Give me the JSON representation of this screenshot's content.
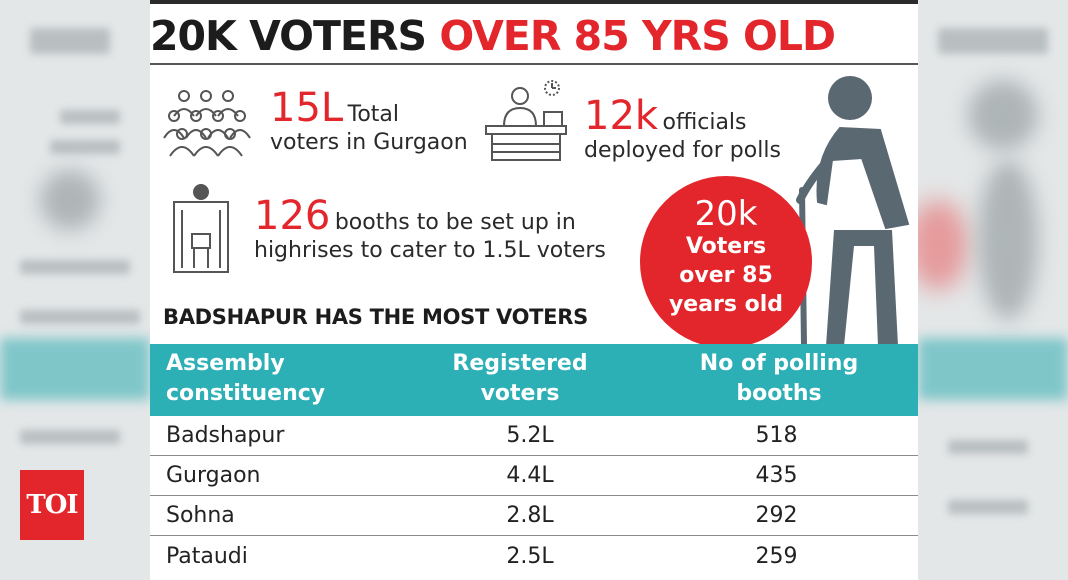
{
  "headline": {
    "part1": "20K VOTERS",
    "part2": "OVER 85 YRS OLD"
  },
  "stats": [
    {
      "big": "15L",
      "line1": "Total",
      "line2": "voters in Gurgaon",
      "icon": "crowd-icon"
    },
    {
      "big": "12k",
      "line1": "officials",
      "line2": "deployed for polls",
      "icon": "official-desk-icon"
    },
    {
      "big": "126",
      "line1": "booths to be set up in",
      "line2": "highrises to cater to 1.5L voters",
      "icon": "voting-booth-icon"
    }
  ],
  "circle": {
    "big": "20k",
    "text": "Voters over 85 years old"
  },
  "section_title": "BADSHAPUR HAS THE MOST VOTERS",
  "table": {
    "headers": [
      "Assembly constituency",
      "Registered voters",
      "No of polling booths"
    ],
    "rows": [
      [
        "Badshapur",
        "5.2L",
        "518"
      ],
      [
        "Gurgaon",
        "4.4L",
        "435"
      ],
      [
        "Sohna",
        "2.8L",
        "292"
      ],
      [
        "Pataudi",
        "2.5L",
        "259"
      ]
    ]
  },
  "logo": "TOI",
  "colors": {
    "accent_red": "#e3262b",
    "teal": "#2dafb6",
    "figure": "#5a6872"
  }
}
